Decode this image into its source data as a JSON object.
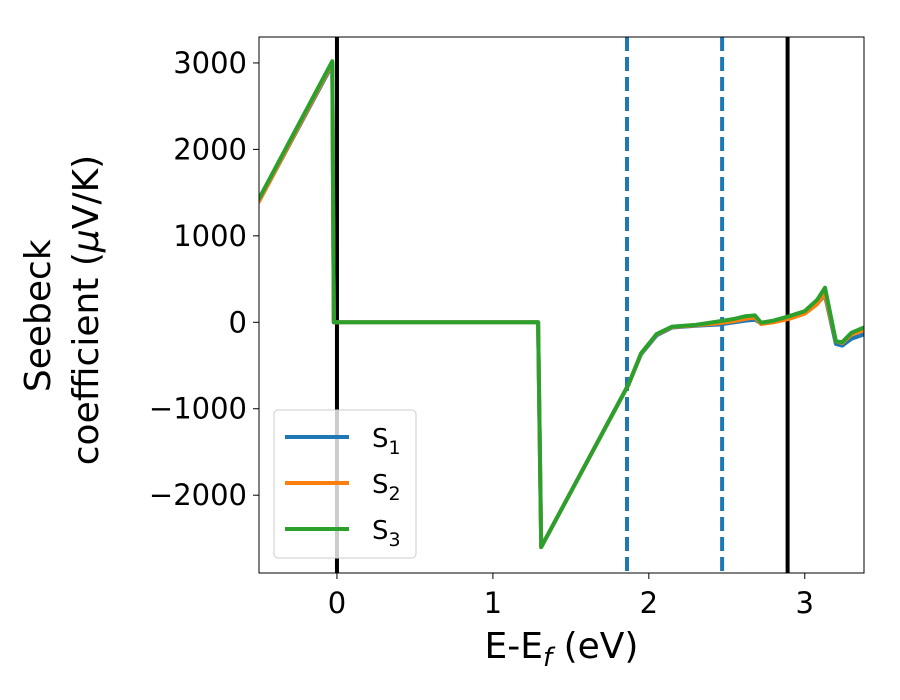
{
  "chart_data": {
    "type": "line",
    "xlabel": {
      "main": "E-E",
      "sub": "f",
      "unit": " (eV)"
    },
    "ylabel": {
      "line1": "Seebeck",
      "line2": "coefficient  (",
      "mu": "μ",
      "unit": "V/K)"
    },
    "xlim": [
      -0.5,
      3.38
    ],
    "ylim": [
      -2900,
      3300
    ],
    "x_ticks": [
      0,
      1,
      2,
      3
    ],
    "x_tick_labels": [
      "0",
      "1",
      "2",
      "3"
    ],
    "y_ticks": [
      3000,
      2000,
      1000,
      0,
      -1000,
      -2000
    ],
    "y_tick_labels": [
      "3000",
      "2000",
      "1000",
      "0",
      "−1000",
      "−2000"
    ],
    "grid": false,
    "legend_position": "lower-left",
    "series": [
      {
        "name": "S",
        "subscript": "1",
        "color": "#1f77b4",
        "x": [
          -0.5,
          -0.03,
          -0.02,
          1.29,
          1.31,
          1.87,
          1.95,
          2.05,
          2.15,
          2.3,
          2.45,
          2.55,
          2.62,
          2.68,
          2.72,
          2.8,
          2.9,
          3.0,
          3.08,
          3.13,
          3.2,
          3.24,
          3.3,
          3.38
        ],
        "y": [
          1400,
          2980,
          0,
          0,
          -2600,
          -720,
          -370,
          -150,
          -60,
          -40,
          -25,
          0,
          20,
          30,
          -10,
          10,
          50,
          110,
          220,
          310,
          -250,
          -270,
          -190,
          -140
        ]
      },
      {
        "name": "S",
        "subscript": "2",
        "color": "#ff7f0e",
        "x": [
          -0.5,
          -0.03,
          -0.02,
          1.29,
          1.31,
          1.87,
          1.95,
          2.05,
          2.15,
          2.3,
          2.45,
          2.55,
          2.62,
          2.68,
          2.72,
          2.8,
          2.9,
          3.0,
          3.08,
          3.13,
          3.2,
          3.24,
          3.3,
          3.38
        ],
        "y": [
          1400,
          3000,
          0,
          0,
          -2600,
          -720,
          -365,
          -140,
          -55,
          -35,
          -10,
          15,
          40,
          55,
          -20,
          0,
          40,
          100,
          210,
          330,
          -220,
          -240,
          -140,
          -90
        ]
      },
      {
        "name": "S",
        "subscript": "3",
        "color": "#2ca02c",
        "x": [
          -0.5,
          -0.03,
          -0.02,
          1.29,
          1.31,
          1.87,
          1.95,
          2.05,
          2.15,
          2.3,
          2.45,
          2.55,
          2.62,
          2.68,
          2.72,
          2.8,
          2.9,
          3.0,
          3.08,
          3.13,
          3.2,
          3.24,
          3.3,
          3.38
        ],
        "y": [
          1430,
          3020,
          0,
          0,
          -2600,
          -720,
          -360,
          -135,
          -50,
          -30,
          10,
          40,
          70,
          80,
          -5,
          20,
          70,
          130,
          260,
          400,
          -220,
          -230,
          -120,
          -60
        ]
      }
    ],
    "vlines": [
      {
        "x": 0,
        "color": "#000000",
        "style": "solid"
      },
      {
        "x": 2.89,
        "color": "#000000",
        "style": "solid"
      },
      {
        "x": 1.86,
        "color": "#1f77b4",
        "style": "dashed"
      },
      {
        "x": 2.47,
        "color": "#1f77b4",
        "style": "dashed"
      }
    ]
  }
}
